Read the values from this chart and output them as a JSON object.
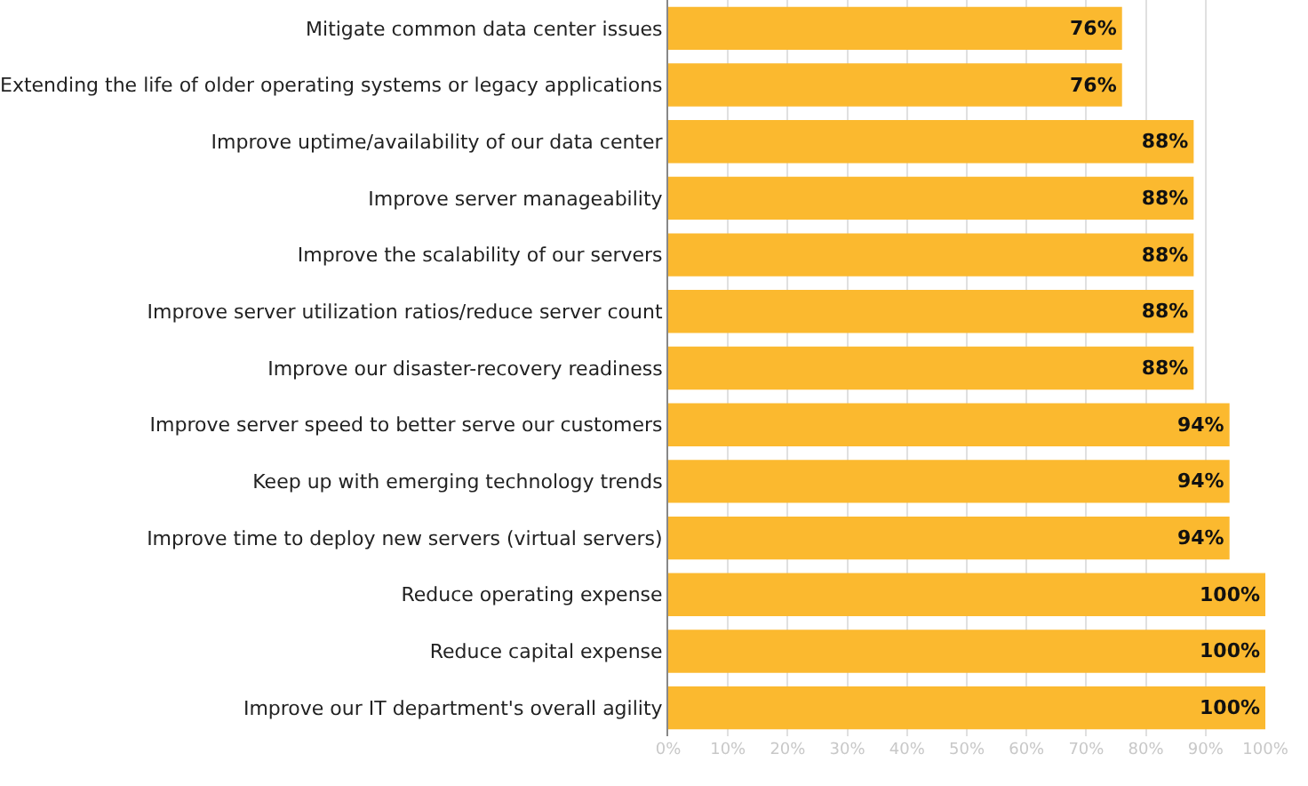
{
  "chart_data": {
    "type": "bar",
    "orientation": "horizontal",
    "categories": [
      "Mitigate common data center issues",
      "Extending the life of older operating systems or legacy applications",
      "Improve uptime/availability of our data center",
      "Improve server manageability",
      "Improve the scalability of our servers",
      "Improve server utilization ratios/reduce server count",
      "Improve our disaster-recovery readiness",
      "Improve server speed to better serve our customers",
      "Keep up with emerging technology trends",
      "Improve time to deploy new servers (virtual servers)",
      "Reduce operating expense",
      "Reduce capital expense",
      "Improve our IT department's overall agility"
    ],
    "values": [
      76,
      76,
      88,
      88,
      88,
      88,
      88,
      94,
      94,
      94,
      100,
      100,
      100
    ],
    "value_labels": [
      "76%",
      "76%",
      "88%",
      "88%",
      "88%",
      "88%",
      "88%",
      "94%",
      "94%",
      "94%",
      "100%",
      "100%",
      "100%"
    ],
    "color": "#fbb92f",
    "xlim": [
      0,
      100
    ],
    "xticks": [
      {
        "value": 0,
        "label": "0%"
      },
      {
        "value": 10,
        "label": "10%"
      },
      {
        "value": 20,
        "label": "20%"
      },
      {
        "value": 30,
        "label": "30%"
      },
      {
        "value": 40,
        "label": "40%"
      },
      {
        "value": 50,
        "label": "50%"
      },
      {
        "value": 60,
        "label": "60%"
      },
      {
        "value": 70,
        "label": "70%"
      },
      {
        "value": 80,
        "label": "80%"
      },
      {
        "value": 90,
        "label": "90%"
      },
      {
        "value": 100,
        "label": "100%"
      }
    ],
    "grid": "x"
  }
}
